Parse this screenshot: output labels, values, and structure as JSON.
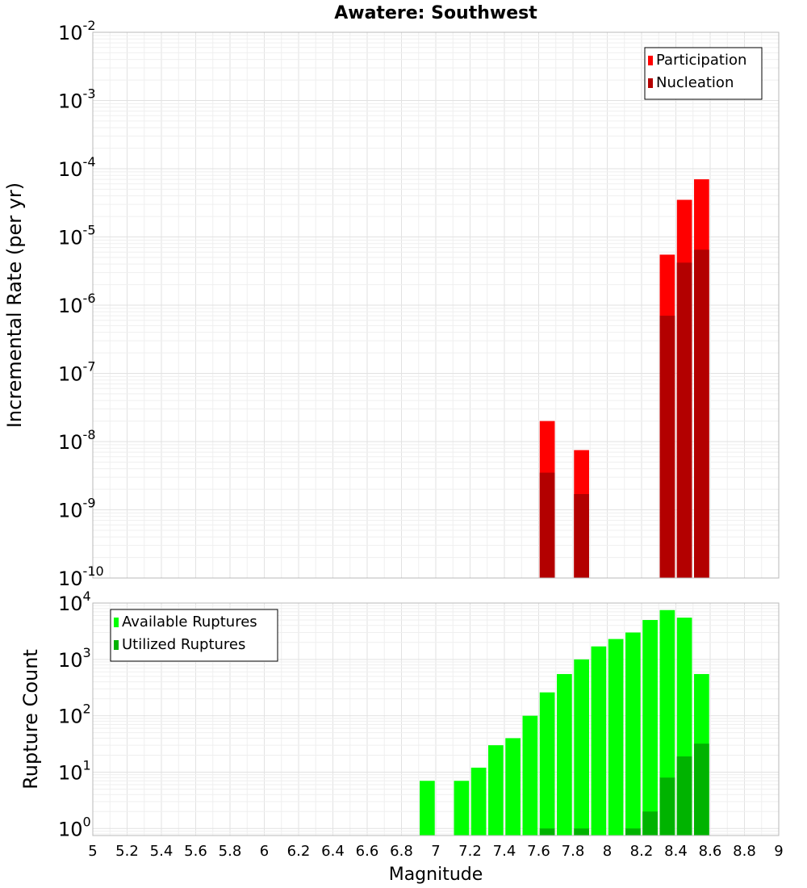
{
  "chart_data": [
    {
      "type": "bar",
      "title": "Awatere: Southwest",
      "xlabel": "",
      "ylabel": "Incremental Rate (per yr)",
      "x_scale": "linear",
      "y_scale": "log",
      "xlim": [
        5,
        9
      ],
      "ylim": [
        1e-10,
        0.01
      ],
      "bar_width": 0.1,
      "legend": {
        "position": "top-right"
      },
      "series": [
        {
          "name": "Participation",
          "color": "#ff0000",
          "x": [
            7.65,
            7.85,
            8.35,
            8.45,
            8.55
          ],
          "values": [
            2e-08,
            7.5e-09,
            5.5e-06,
            3.5e-05,
            7e-05
          ]
        },
        {
          "name": "Nucleation",
          "color": "#b30000",
          "x": [
            7.65,
            7.85,
            8.35,
            8.45,
            8.55
          ],
          "values": [
            3.5e-09,
            1.7e-09,
            7e-07,
            4.2e-06,
            6.5e-06
          ]
        }
      ]
    },
    {
      "type": "bar",
      "title": "",
      "xlabel": "Magnitude",
      "ylabel": "Rupture Count",
      "x_scale": "linear",
      "y_scale": "log",
      "xlim": [
        5,
        9
      ],
      "ylim": [
        0.75,
        10000
      ],
      "bar_width": 0.1,
      "legend": {
        "position": "top-left"
      },
      "series": [
        {
          "name": "Available Ruptures",
          "color": "#00ff00",
          "x": [
            6.95,
            7.15,
            7.25,
            7.35,
            7.45,
            7.55,
            7.65,
            7.75,
            7.85,
            7.95,
            8.05,
            8.15,
            8.25,
            8.35,
            8.45,
            8.55
          ],
          "values": [
            7,
            7,
            12,
            30,
            40,
            100,
            260,
            550,
            1000,
            1700,
            2300,
            3000,
            5000,
            7500,
            5500,
            550
          ]
        },
        {
          "name": "Utilized Ruptures",
          "color": "#00b300",
          "x": [
            7.65,
            7.85,
            8.15,
            8.25,
            8.35,
            8.45,
            8.55
          ],
          "values": [
            1,
            1,
            1,
            2,
            8,
            19,
            32
          ]
        }
      ]
    }
  ]
}
